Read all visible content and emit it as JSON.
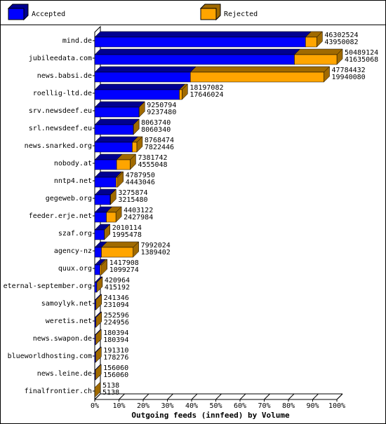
{
  "chart_data": {
    "type": "bar3d_stacked_horizontal",
    "x_label": "Outgoing feeds (innfeed) by Volume",
    "categories": [
      "mind.de",
      "jubileedata.com",
      "news.babsi.de",
      "roellig-ltd.de",
      "srv.newsdeef.eu",
      "srl.newsdeef.eu",
      "news.snarked.org",
      "nobody.at",
      "nntp4.net",
      "gegeweb.org",
      "feeder.erje.net",
      "szaf.org",
      "agency-nz",
      "quux.org",
      "eternal-september.org",
      "samoylyk.net",
      "weretis.net",
      "news.swapon.de",
      "blueworldhosting.com",
      "news.leine.de",
      "finalfrontier.ch"
    ],
    "series": [
      {
        "name": "Accepted",
        "color": "#0000ff",
        "side_color": "#000090",
        "values": [
          43950082,
          41635068,
          19940080,
          17646024,
          9237480,
          8060340,
          7822446,
          4555048,
          4443046,
          3215480,
          2427984,
          1995478,
          1389402,
          1099274,
          415192,
          231094,
          224956,
          180394,
          178276,
          156060,
          5138
        ]
      },
      {
        "name": "Rejected",
        "color": "#ffa500",
        "side_color": "#a06a00",
        "values": [
          2352442,
          8854056,
          27844352,
          551058,
          13314,
          3400,
          946028,
          2826694,
          344904,
          60394,
          1975138,
          14636,
          6602622,
          318634,
          5772,
          10252,
          27640,
          0,
          13034,
          0,
          0
        ]
      }
    ],
    "totals": [
      46302524,
      50489124,
      47784432,
      18197082,
      9250794,
      8063740,
      8768474,
      7381742,
      4787950,
      3275874,
      4403122,
      2010114,
      7992024,
      1417908,
      420964,
      241346,
      252596,
      180394,
      191310,
      156060,
      5138
    ],
    "xlim": [
      0,
      50489124
    ],
    "xticks": [
      {
        "value": 0,
        "label": "0%"
      },
      {
        "value": 5048912.4,
        "label": "10%"
      },
      {
        "value": 10097824.8,
        "label": "20%"
      },
      {
        "value": 15146737.2,
        "label": "30%"
      },
      {
        "value": 20195649.6,
        "label": "40%"
      },
      {
        "value": 25244562,
        "label": "50%"
      },
      {
        "value": 30293474.4,
        "label": "60%"
      },
      {
        "value": 35342386.8,
        "label": "70%"
      },
      {
        "value": 40391299.2,
        "label": "80%"
      },
      {
        "value": 45440211.6,
        "label": "90%"
      },
      {
        "value": 50489124,
        "label": "100%"
      }
    ]
  }
}
